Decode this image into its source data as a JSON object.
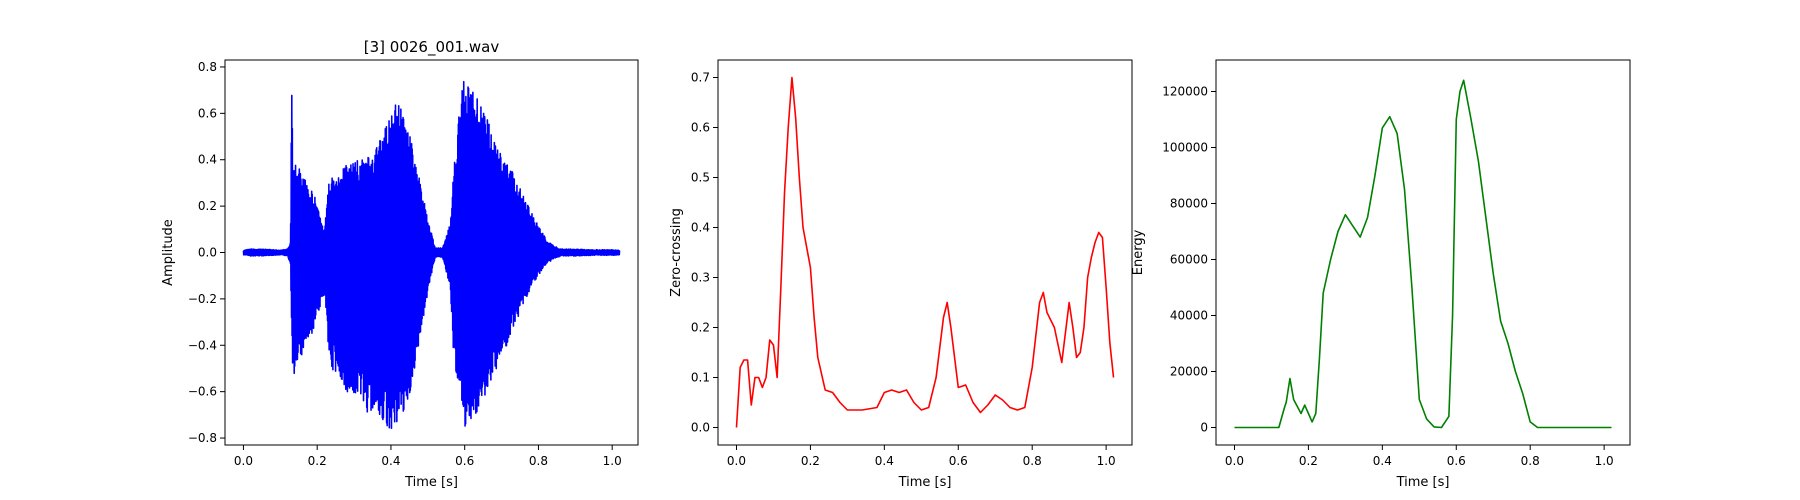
{
  "chart_data": [
    {
      "type": "line",
      "title": "[3] 0026_001.wav",
      "xlabel": "Time [s]",
      "ylabel": "Amplitude",
      "xlim": [
        -0.05,
        1.07
      ],
      "ylim": [
        -0.83,
        0.83
      ],
      "xticks": [
        "0.0",
        "0.2",
        "0.4",
        "0.6",
        "0.8",
        "1.0"
      ],
      "yticks": [
        "−0.8",
        "−0.6",
        "−0.4",
        "−0.2",
        "0.0",
        "0.2",
        "0.4",
        "0.6",
        "0.8"
      ],
      "grid": false,
      "series": [
        {
          "color": "#0000ff",
          "waveform": true,
          "x": [
            0.0,
            0.02,
            0.05,
            0.08,
            0.1,
            0.12,
            0.128,
            0.13,
            0.135,
            0.14,
            0.16,
            0.18,
            0.2,
            0.22,
            0.23,
            0.24,
            0.26,
            0.28,
            0.3,
            0.32,
            0.34,
            0.36,
            0.38,
            0.4,
            0.42,
            0.44,
            0.46,
            0.48,
            0.5,
            0.52,
            0.54,
            0.56,
            0.57,
            0.58,
            0.59,
            0.6,
            0.62,
            0.64,
            0.66,
            0.68,
            0.7,
            0.72,
            0.74,
            0.76,
            0.78,
            0.8,
            0.82,
            0.84,
            0.86,
            0.9,
            0.95,
            1.0,
            1.02
          ],
          "upper": [
            0.01,
            0.015,
            0.015,
            0.012,
            0.01,
            0.015,
            0.05,
            0.76,
            0.42,
            0.38,
            0.35,
            0.28,
            0.22,
            0.1,
            0.3,
            0.33,
            0.36,
            0.38,
            0.4,
            0.4,
            0.42,
            0.45,
            0.52,
            0.6,
            0.66,
            0.58,
            0.45,
            0.3,
            0.15,
            0.02,
            0.02,
            0.12,
            0.35,
            0.5,
            0.7,
            0.76,
            0.72,
            0.66,
            0.58,
            0.5,
            0.42,
            0.38,
            0.32,
            0.25,
            0.18,
            0.12,
            0.06,
            0.03,
            0.015,
            0.015,
            0.012,
            0.012,
            0.01
          ],
          "lower": [
            -0.01,
            -0.015,
            -0.015,
            -0.012,
            -0.01,
            -0.015,
            -0.06,
            -0.32,
            -0.59,
            -0.5,
            -0.45,
            -0.38,
            -0.28,
            -0.18,
            -0.4,
            -0.52,
            -0.55,
            -0.6,
            -0.64,
            -0.68,
            -0.7,
            -0.72,
            -0.74,
            -0.76,
            -0.74,
            -0.68,
            -0.55,
            -0.35,
            -0.18,
            -0.02,
            -0.02,
            -0.15,
            -0.45,
            -0.55,
            -0.7,
            -0.76,
            -0.72,
            -0.67,
            -0.6,
            -0.52,
            -0.45,
            -0.38,
            -0.3,
            -0.22,
            -0.15,
            -0.1,
            -0.05,
            -0.03,
            -0.015,
            -0.015,
            -0.012,
            -0.012,
            -0.01
          ]
        }
      ]
    },
    {
      "type": "line",
      "title": "",
      "xlabel": "Time [s]",
      "ylabel": "Zero-crossing",
      "xlim": [
        -0.05,
        1.07
      ],
      "ylim": [
        -0.035,
        0.735
      ],
      "xticks": [
        "0.0",
        "0.2",
        "0.4",
        "0.6",
        "0.8",
        "1.0"
      ],
      "yticks": [
        "0.0",
        "0.1",
        "0.2",
        "0.3",
        "0.4",
        "0.5",
        "0.6",
        "0.7"
      ],
      "grid": false,
      "series": [
        {
          "color": "#ff0000",
          "x": [
            0.0,
            0.01,
            0.02,
            0.03,
            0.04,
            0.05,
            0.06,
            0.07,
            0.08,
            0.09,
            0.1,
            0.11,
            0.12,
            0.13,
            0.14,
            0.15,
            0.16,
            0.17,
            0.18,
            0.19,
            0.2,
            0.21,
            0.22,
            0.24,
            0.26,
            0.28,
            0.3,
            0.34,
            0.38,
            0.4,
            0.42,
            0.44,
            0.46,
            0.48,
            0.5,
            0.52,
            0.54,
            0.56,
            0.57,
            0.58,
            0.6,
            0.62,
            0.64,
            0.66,
            0.68,
            0.7,
            0.72,
            0.74,
            0.76,
            0.78,
            0.8,
            0.82,
            0.83,
            0.84,
            0.86,
            0.88,
            0.9,
            0.91,
            0.92,
            0.93,
            0.94,
            0.95,
            0.96,
            0.97,
            0.98,
            0.99,
            1.0,
            1.01,
            1.02
          ],
          "y": [
            0.0,
            0.12,
            0.135,
            0.135,
            0.045,
            0.1,
            0.1,
            0.08,
            0.1,
            0.175,
            0.165,
            0.1,
            0.28,
            0.47,
            0.6,
            0.7,
            0.62,
            0.5,
            0.4,
            0.36,
            0.32,
            0.22,
            0.14,
            0.075,
            0.07,
            0.05,
            0.035,
            0.035,
            0.04,
            0.07,
            0.075,
            0.07,
            0.075,
            0.05,
            0.035,
            0.04,
            0.1,
            0.22,
            0.25,
            0.2,
            0.08,
            0.085,
            0.05,
            0.03,
            0.045,
            0.065,
            0.055,
            0.04,
            0.035,
            0.04,
            0.12,
            0.25,
            0.27,
            0.23,
            0.2,
            0.13,
            0.25,
            0.2,
            0.14,
            0.15,
            0.2,
            0.3,
            0.34,
            0.37,
            0.39,
            0.38,
            0.28,
            0.17,
            0.1
          ]
        }
      ]
    },
    {
      "type": "line",
      "title": "",
      "xlabel": "Time [s]",
      "ylabel": "Energy",
      "xlim": [
        -0.05,
        1.07
      ],
      "ylim": [
        -6250,
        131250
      ],
      "xticks": [
        "0.0",
        "0.2",
        "0.4",
        "0.6",
        "0.8",
        "1.0"
      ],
      "yticks": [
        "0",
        "20000",
        "40000",
        "60000",
        "80000",
        "100000",
        "120000"
      ],
      "grid": false,
      "series": [
        {
          "color": "#008000",
          "x": [
            0.0,
            0.12,
            0.135,
            0.14,
            0.15,
            0.16,
            0.18,
            0.19,
            0.2,
            0.21,
            0.22,
            0.23,
            0.24,
            0.26,
            0.28,
            0.3,
            0.32,
            0.34,
            0.36,
            0.38,
            0.4,
            0.42,
            0.44,
            0.46,
            0.48,
            0.5,
            0.52,
            0.54,
            0.56,
            0.58,
            0.59,
            0.6,
            0.61,
            0.62,
            0.64,
            0.66,
            0.68,
            0.7,
            0.72,
            0.74,
            0.76,
            0.78,
            0.8,
            0.82,
            0.84,
            0.9,
            1.02
          ],
          "y": [
            0,
            0,
            7000,
            9000,
            17500,
            10000,
            5000,
            8000,
            5000,
            2000,
            5000,
            25000,
            48000,
            60000,
            70000,
            76000,
            72000,
            68000,
            75000,
            90000,
            107000,
            111000,
            105000,
            85000,
            50000,
            10000,
            3000,
            200,
            0,
            4000,
            40000,
            110000,
            120000,
            124000,
            110000,
            95000,
            75000,
            55000,
            38000,
            30000,
            20000,
            12000,
            2000,
            0,
            0,
            0,
            0
          ]
        }
      ]
    }
  ]
}
